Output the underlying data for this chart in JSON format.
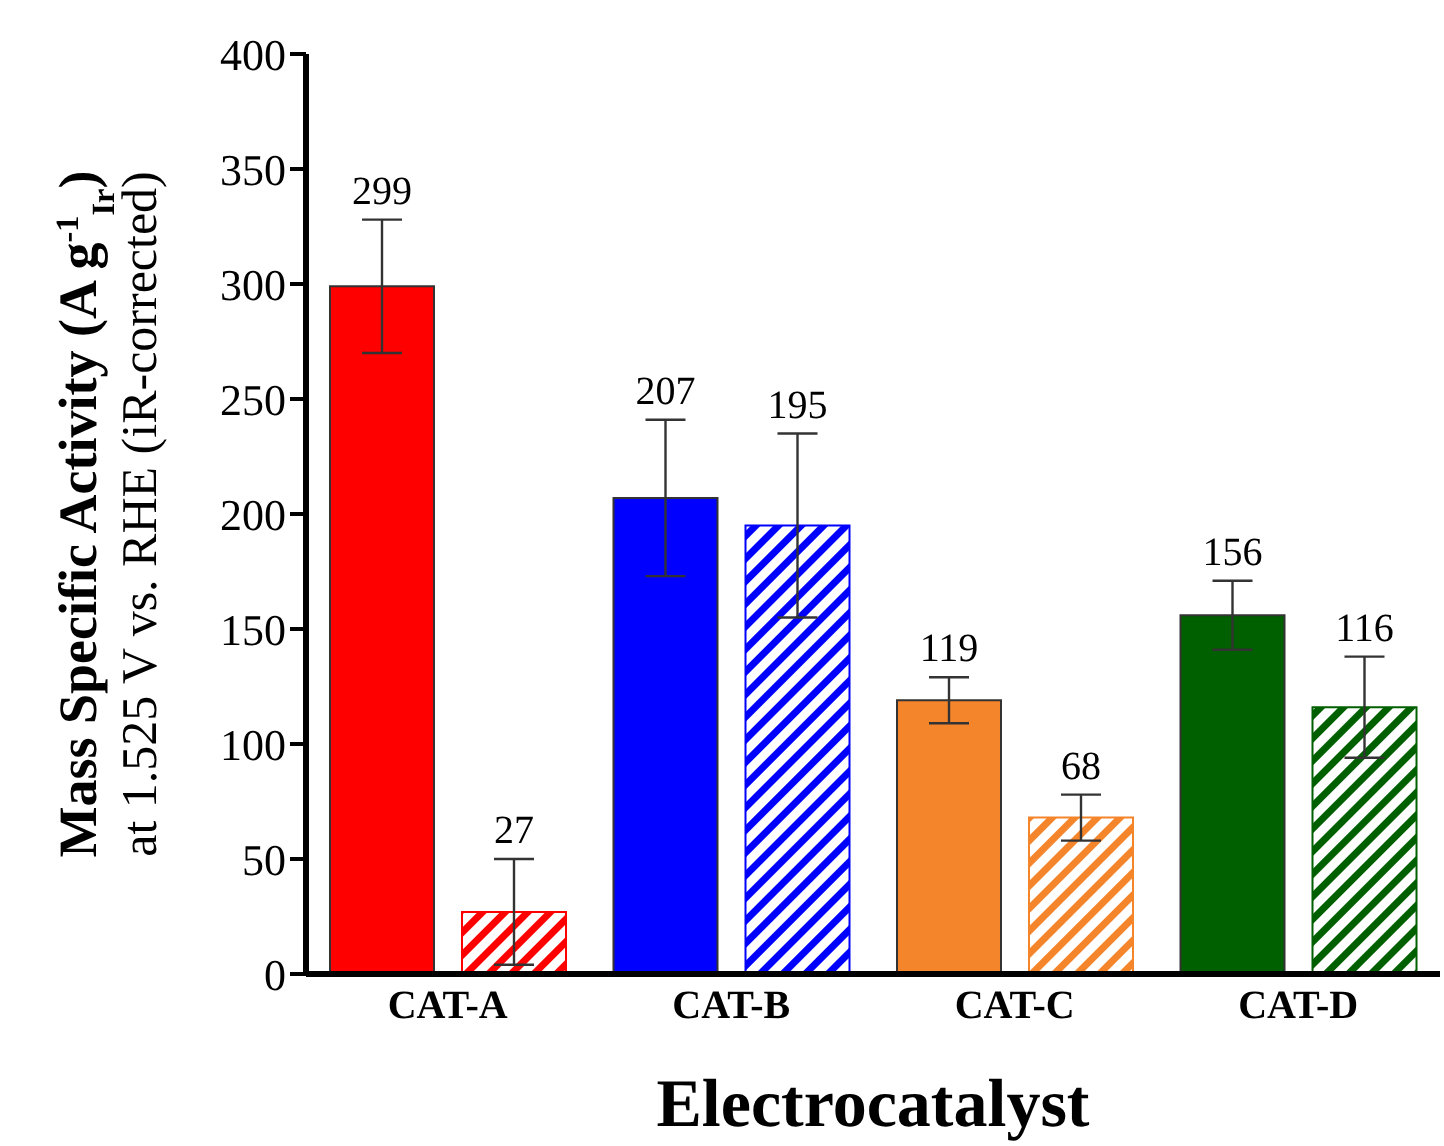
{
  "chart_data": {
    "type": "bar",
    "xlabel": "Electrocatalyst",
    "ylabel": "Mass Specific Activity (A g$^{-1}$$_{Ir}$)\nat 1.525 V vs. RHE (iR-corrected)",
    "categories": [
      "CAT-A",
      "CAT-B",
      "CAT-C",
      "CAT-D"
    ],
    "series": [
      {
        "colors": [
          "#ff0000",
          "#0000ff",
          "#f5852a",
          "#006000"
        ],
        "values": [
          299,
          207,
          119,
          156
        ],
        "errors": [
          29,
          34,
          10,
          15
        ]
      },
      {
        "colors": [
          "#ff0000",
          "#0000ff",
          "#f5852a",
          "#006000"
        ],
        "values": [
          27,
          195,
          68,
          116
        ],
        "errors": [
          23,
          40,
          10,
          22
        ]
      }
    ],
    "ylim": [
      0,
      400
    ],
    "yticks": [
      0,
      50,
      100,
      150,
      200,
      250,
      300,
      350,
      400
    ],
    "data_labels": true,
    "grid": false,
    "legend": false
  }
}
